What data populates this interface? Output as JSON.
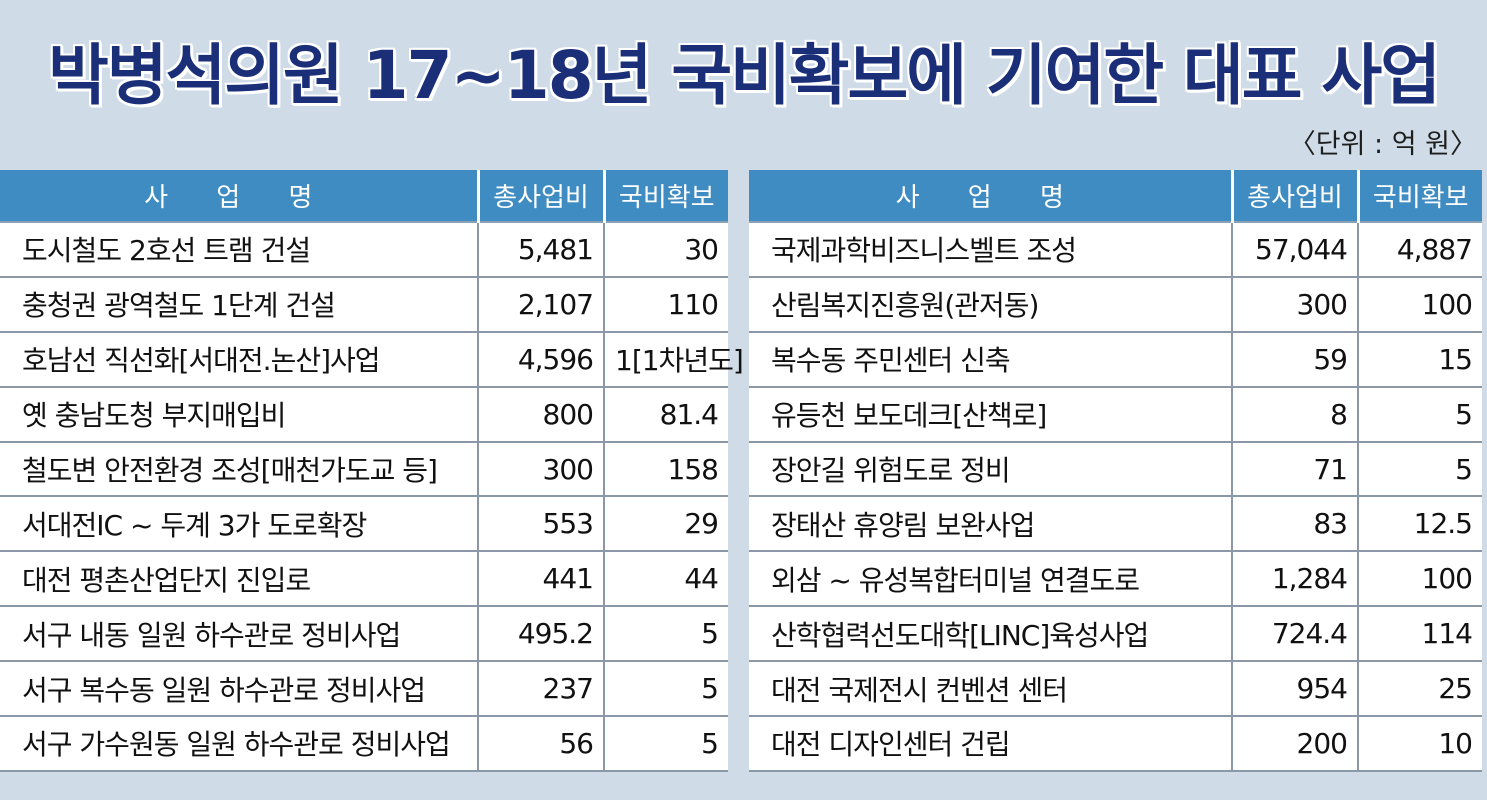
{
  "title": "박병석의원 17~18년 국비확보에 기여한 대표 사업",
  "unit": "〈단위 : 억 원〉",
  "headers": {
    "name": "사 업 명",
    "total": "총사업비",
    "national": "국비확보"
  },
  "left_rows": [
    {
      "name": "도시철도 2호선 트램 건설",
      "total": "5,481",
      "national": "30"
    },
    {
      "name": "충청권 광역철도 1단계 건설",
      "total": "2,107",
      "national": "110"
    },
    {
      "name": "호남선 직선화[서대전.논산]사업",
      "total": "4,596",
      "national": "1[1차년도]"
    },
    {
      "name": "옛 충남도청 부지매입비",
      "total": "800",
      "national": "81.4"
    },
    {
      "name": "철도변 안전환경 조성[매천가도교 등]",
      "total": "300",
      "national": "158"
    },
    {
      "name": "서대전IC ~ 두계 3가 도로확장",
      "total": "553",
      "national": "29"
    },
    {
      "name": "대전 평촌산업단지 진입로",
      "total": "441",
      "national": "44"
    },
    {
      "name": "서구 내동 일원 하수관로 정비사업",
      "total": "495.2",
      "national": "5"
    },
    {
      "name": "서구 복수동 일원 하수관로 정비사업",
      "total": "237",
      "national": "5"
    },
    {
      "name": "서구 가수원동 일원 하수관로 정비사업",
      "total": "56",
      "national": "5"
    }
  ],
  "right_rows": [
    {
      "name": "국제과학비즈니스벨트 조성",
      "total": "57,044",
      "national": "4,887"
    },
    {
      "name": "산림복지진흥원(관저동)",
      "total": "300",
      "national": "100"
    },
    {
      "name": "복수동 주민센터 신축",
      "total": "59",
      "national": "15"
    },
    {
      "name": "유등천 보도데크[산책로]",
      "total": "8",
      "national": "5"
    },
    {
      "name": "장안길 위험도로 정비",
      "total": "71",
      "national": "5"
    },
    {
      "name": "장태산 휴양림 보완사업",
      "total": "83",
      "national": "12.5"
    },
    {
      "name": "외삼 ~ 유성복합터미널 연결도로",
      "total": "1,284",
      "national": "100"
    },
    {
      "name": "산학협력선도대학[LINC]육성사업",
      "total": "724.4",
      "national": "114"
    },
    {
      "name": "대전 국제전시 컨벤션 센터",
      "total": "954",
      "national": "25"
    },
    {
      "name": "대전 디자인센터 건립",
      "total": "200",
      "national": "10"
    }
  ]
}
